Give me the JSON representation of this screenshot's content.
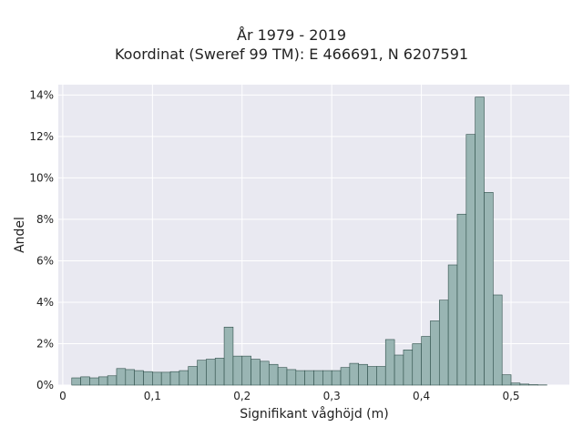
{
  "chart_data": {
    "type": "bar",
    "title": "År 1979 - 2019",
    "subtitle": "Koordinat (Sweref 99 TM): E 466691, N 6207591",
    "xlabel": "Signifikant våghöjd (m)",
    "ylabel": "Andel",
    "xlim": [
      -0.005,
      0.565
    ],
    "ylim": [
      0,
      14.5
    ],
    "x_ticks": [
      0,
      0.1,
      0.2,
      0.3,
      0.4,
      0.5
    ],
    "x_tick_labels": [
      "0",
      "0,1",
      "0,2",
      "0,3",
      "0,4",
      "0,5"
    ],
    "y_ticks": [
      0,
      2,
      4,
      6,
      8,
      10,
      12,
      14
    ],
    "y_tick_labels": [
      "0%",
      "2%",
      "4%",
      "6%",
      "8%",
      "10%",
      "12%",
      "14%"
    ],
    "bin_width": 0.01,
    "bin_starts": [
      0.01,
      0.02,
      0.03,
      0.04,
      0.05,
      0.06,
      0.07,
      0.08,
      0.09,
      0.1,
      0.11,
      0.12,
      0.13,
      0.14,
      0.15,
      0.16,
      0.17,
      0.18,
      0.19,
      0.2,
      0.21,
      0.22,
      0.23,
      0.24,
      0.25,
      0.26,
      0.27,
      0.28,
      0.29,
      0.3,
      0.31,
      0.32,
      0.33,
      0.34,
      0.35,
      0.36,
      0.37,
      0.38,
      0.39,
      0.4,
      0.41,
      0.42,
      0.43,
      0.44,
      0.45,
      0.46,
      0.47,
      0.48,
      0.49,
      0.5,
      0.51,
      0.52,
      0.53
    ],
    "values": [
      0.35,
      0.4,
      0.35,
      0.4,
      0.45,
      0.8,
      0.75,
      0.7,
      0.65,
      0.62,
      0.62,
      0.65,
      0.7,
      0.9,
      1.2,
      1.25,
      1.3,
      2.8,
      1.4,
      1.4,
      1.25,
      1.15,
      1.0,
      0.85,
      0.75,
      0.7,
      0.7,
      0.7,
      0.7,
      0.7,
      0.85,
      1.05,
      1.0,
      0.9,
      0.9,
      2.2,
      1.45,
      1.7,
      2.0,
      2.35,
      3.1,
      4.1,
      5.8,
      8.25,
      12.1,
      13.9,
      9.3,
      4.35,
      0.5,
      0.1,
      0.05,
      0.02,
      0.01
    ],
    "grid": true,
    "bar_color": "#99b5b3",
    "bar_edge_color": "#2f4f4a",
    "plot_background": "#e9e9f1",
    "grid_color": "#ffffff"
  }
}
